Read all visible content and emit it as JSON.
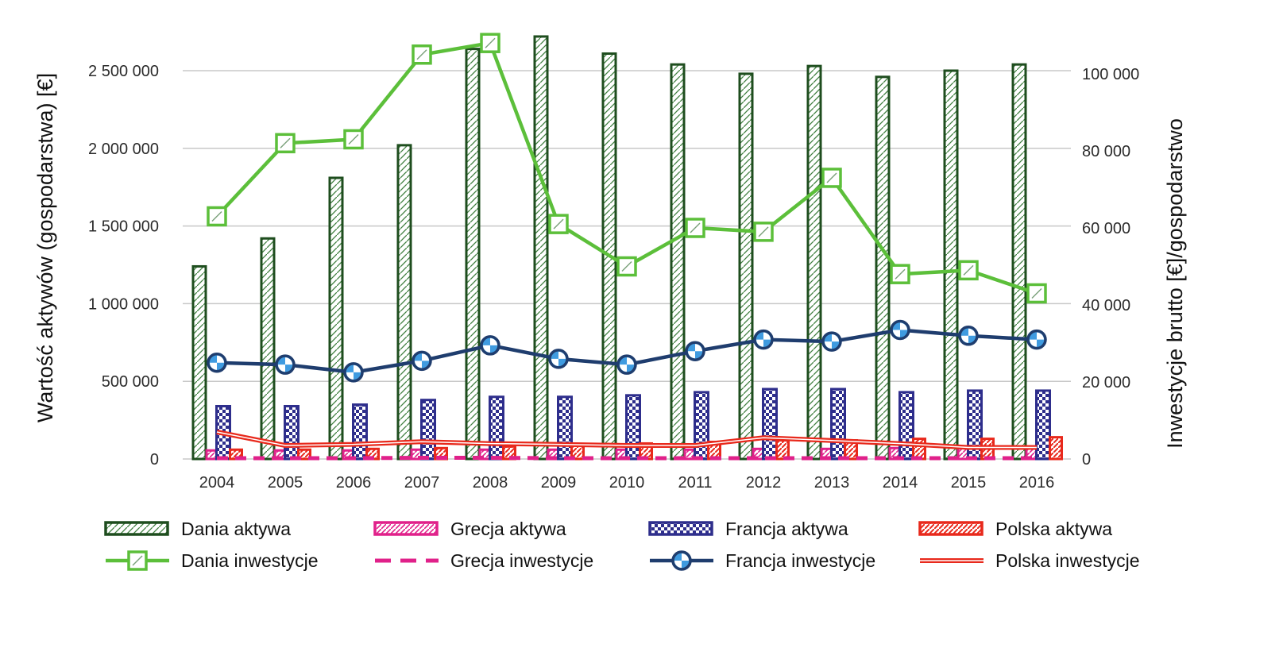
{
  "chart_data": {
    "type": "bar",
    "categories": [
      "2004",
      "2005",
      "2006",
      "2007",
      "2008",
      "2009",
      "2010",
      "2011",
      "2012",
      "2013",
      "2014",
      "2015",
      "2016"
    ],
    "ylabel": "Wartość aktywów (gospodarstwa) [€]",
    "ylabel_right": "Inwestycje brutto [€]/gospodarstwo",
    "ylim": [
      0,
      2500000
    ],
    "ylim_right": [
      0,
      100000
    ],
    "yticks": [
      "0",
      "500 000",
      "1 000 000",
      "1 500 000",
      "2 000 000",
      "2 500 000"
    ],
    "yticks_right": [
      "0",
      "20 000",
      "40 000",
      "60 000",
      "80 000",
      "100 000"
    ],
    "grid": true,
    "legend_position": "bottom",
    "bar_series": [
      {
        "name": "Dania aktywa",
        "color": "#1e4d1e",
        "pattern": "green-hatch",
        "values": [
          1240000,
          1420000,
          1810000,
          2020000,
          2640000,
          2720000,
          2610000,
          2540000,
          2480000,
          2530000,
          2460000,
          2500000,
          2540000
        ]
      },
      {
        "name": "Grecja aktywa",
        "color": "#e0218a",
        "pattern": "pink-hatch",
        "values": [
          55000,
          55000,
          55000,
          60000,
          60000,
          60000,
          60000,
          60000,
          65000,
          65000,
          70000,
          70000,
          70000
        ]
      },
      {
        "name": "Francja aktywa",
        "color": "#2e2e8c",
        "pattern": "blue-check",
        "values": [
          340000,
          340000,
          350000,
          380000,
          400000,
          400000,
          410000,
          430000,
          450000,
          450000,
          430000,
          440000,
          440000
        ]
      },
      {
        "name": "Polska aktywa",
        "color": "#e8291c",
        "pattern": "red-hatch",
        "values": [
          60000,
          60000,
          65000,
          70000,
          80000,
          90000,
          100000,
          110000,
          120000,
          120000,
          130000,
          130000,
          140000
        ]
      }
    ],
    "line_series": [
      {
        "name": "Dania inwestycje",
        "color": "#5cbf3a",
        "marker": "square",
        "values": [
          63000,
          82000,
          83000,
          105000,
          108000,
          61000,
          50000,
          60000,
          59000,
          73000,
          48000,
          49000,
          43000
        ]
      },
      {
        "name": "Grecja inwestycje",
        "color": "#e0218a",
        "marker": "dash",
        "values": [
          200,
          200,
          200,
          300,
          300,
          200,
          200,
          200,
          200,
          200,
          200,
          200,
          200
        ]
      },
      {
        "name": "Francja inwestycje",
        "color": "#1f3d6e",
        "marker": "circle",
        "values": [
          25000,
          24500,
          22500,
          25500,
          29500,
          26000,
          24500,
          28000,
          31000,
          30500,
          33500,
          32000,
          31000
        ]
      },
      {
        "name": "Polska inwestycje",
        "color": "#e8291c",
        "marker": "none",
        "values": [
          7000,
          3500,
          3800,
          4500,
          4000,
          3800,
          3500,
          3500,
          5500,
          4800,
          4000,
          3000,
          3000
        ]
      }
    ]
  }
}
